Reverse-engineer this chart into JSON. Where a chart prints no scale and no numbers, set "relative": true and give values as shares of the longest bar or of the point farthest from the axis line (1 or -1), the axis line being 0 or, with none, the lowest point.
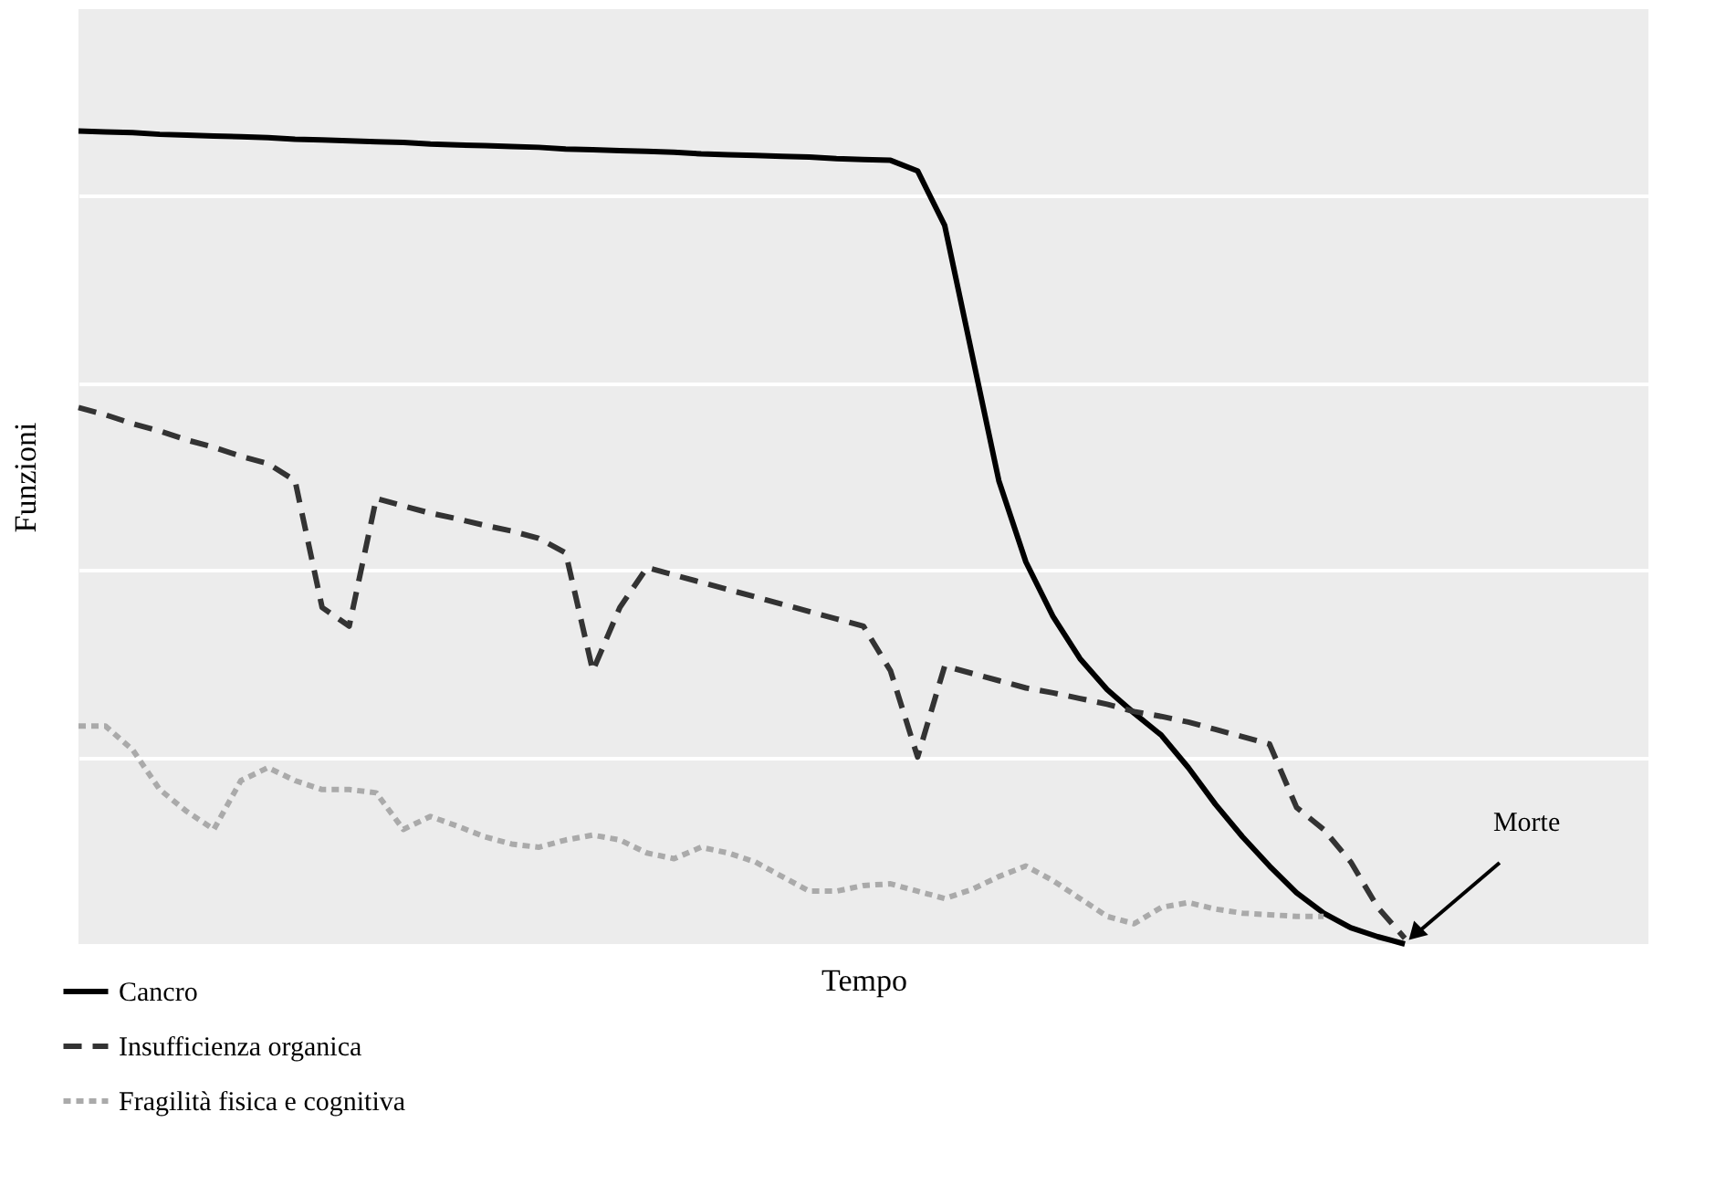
{
  "chart_data": {
    "type": "line",
    "relative": true,
    "xlabel": "Tempo",
    "ylabel": "Funzioni",
    "categories": [
      null,
      null,
      null,
      null,
      null,
      null,
      null,
      null,
      null,
      null,
      null,
      null,
      null,
      null,
      null,
      null,
      null,
      null,
      null,
      null,
      null,
      null,
      null,
      null,
      null,
      null,
      null,
      null,
      null,
      null,
      null,
      null,
      null,
      null,
      null,
      null,
      null,
      null,
      null,
      null,
      null,
      null,
      null,
      null,
      null,
      null,
      null,
      null,
      null,
      null,
      null,
      null,
      null,
      null,
      null,
      null,
      null,
      null,
      null
    ],
    "series": [
      {
        "name": "Cancro",
        "color": "#000000",
        "line_style": "solid",
        "values": [
          1.0,
          0.999,
          0.998,
          0.996,
          0.995,
          0.994,
          0.993,
          0.992,
          0.99,
          0.989,
          0.988,
          0.987,
          0.986,
          0.984,
          0.983,
          0.982,
          0.981,
          0.98,
          0.978,
          0.977,
          0.976,
          0.975,
          0.974,
          0.972,
          0.971,
          0.97,
          0.969,
          0.968,
          0.966,
          0.965,
          0.964,
          0.951,
          0.884,
          0.727,
          0.57,
          0.47,
          0.403,
          0.351,
          0.313,
          0.284,
          0.257,
          0.217,
          0.172,
          0.132,
          0.096,
          0.063,
          0.038,
          0.02,
          0.009,
          0.0,
          null,
          null,
          null,
          null,
          null,
          null,
          null,
          null,
          null
        ]
      },
      {
        "name": "Insufficienza organica",
        "color": "#333333",
        "line_style": "dashed",
        "values": [
          0.66,
          0.651,
          0.64,
          0.631,
          0.62,
          0.611,
          0.6,
          0.591,
          0.57,
          0.414,
          0.391,
          0.548,
          0.539,
          0.53,
          0.523,
          0.515,
          0.508,
          0.499,
          0.481,
          0.336,
          0.414,
          0.463,
          0.454,
          0.445,
          0.436,
          0.427,
          0.418,
          0.409,
          0.4,
          0.391,
          0.336,
          0.23,
          0.342,
          0.333,
          0.324,
          0.315,
          0.309,
          0.302,
          0.295,
          0.286,
          0.28,
          0.273,
          0.264,
          0.255,
          0.246,
          0.168,
          0.141,
          0.101,
          0.045,
          0.007,
          null,
          null,
          null,
          null,
          null,
          null,
          null,
          null,
          null
        ]
      },
      {
        "name": "Fragilità fisica e cognitiva",
        "color": "#aaaaaa",
        "line_style": "dotted",
        "values": [
          0.268,
          0.268,
          0.239,
          0.19,
          0.163,
          0.141,
          0.201,
          0.217,
          0.201,
          0.19,
          0.19,
          0.186,
          0.141,
          0.157,
          0.145,
          0.132,
          0.123,
          0.119,
          0.128,
          0.134,
          0.128,
          0.112,
          0.105,
          0.119,
          0.112,
          0.101,
          0.083,
          0.065,
          0.065,
          0.072,
          0.074,
          0.065,
          0.056,
          0.067,
          0.083,
          0.096,
          0.078,
          0.056,
          0.034,
          0.025,
          0.045,
          0.051,
          0.043,
          0.038,
          0.036,
          0.034,
          0.034,
          null,
          null,
          null,
          null,
          null,
          null,
          null,
          null,
          null,
          null,
          null,
          null
        ]
      }
    ],
    "annotations": [
      {
        "text": "Morte"
      }
    ],
    "grid": true,
    "legend": "bottom left",
    "marker": "none"
  }
}
